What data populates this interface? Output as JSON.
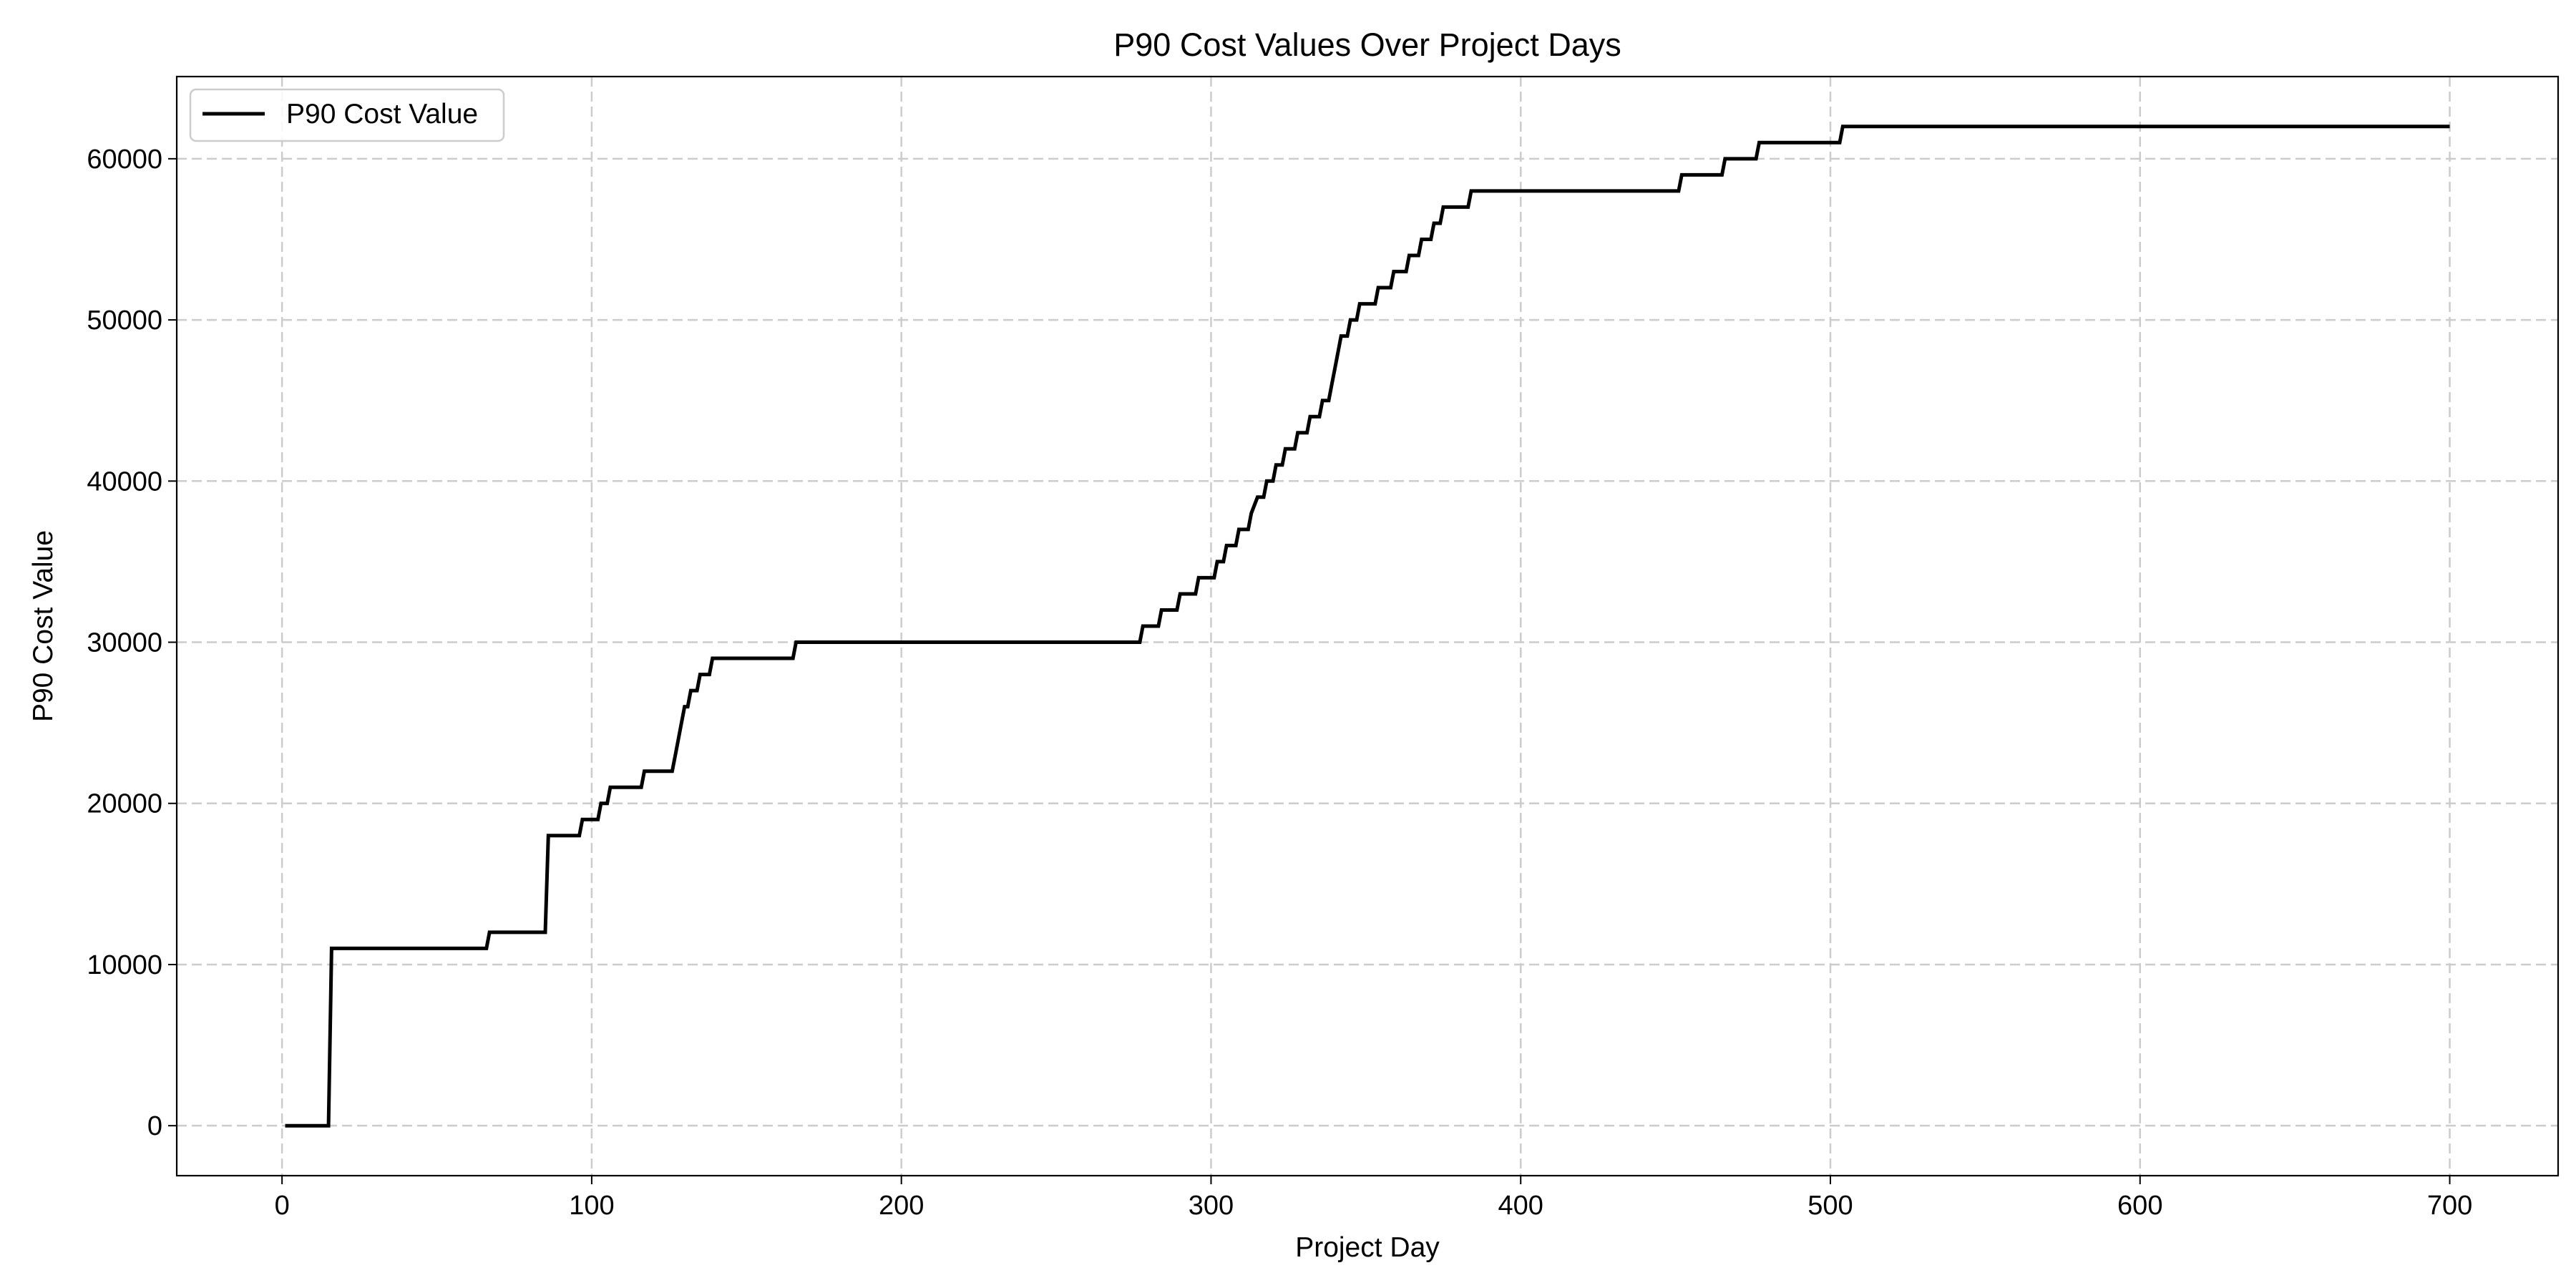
{
  "chart_data": {
    "type": "line",
    "title": "P90 Cost Values Over Project Days",
    "xlabel": "Project Day",
    "ylabel": "P90 Cost Value",
    "xlim": [
      -34,
      735
    ],
    "ylim": [
      -3100,
      65100
    ],
    "xticks": [
      0,
      100,
      200,
      300,
      400,
      500,
      600,
      700
    ],
    "yticks": [
      0,
      10000,
      20000,
      30000,
      40000,
      50000,
      60000
    ],
    "grid": true,
    "legend_position": "top-left",
    "series": [
      {
        "name": "P90 Cost Value",
        "color": "#000000",
        "step": true,
        "points": [
          [
            1,
            0
          ],
          [
            15,
            0
          ],
          [
            16,
            11000
          ],
          [
            66,
            11000
          ],
          [
            67,
            12000
          ],
          [
            85,
            12000
          ],
          [
            86,
            18000
          ],
          [
            96,
            18000
          ],
          [
            97,
            19000
          ],
          [
            102,
            19000
          ],
          [
            103,
            20000
          ],
          [
            105,
            20000
          ],
          [
            106,
            21000
          ],
          [
            116,
            21000
          ],
          [
            117,
            22000
          ],
          [
            126,
            22000
          ],
          [
            127,
            23000
          ],
          [
            128,
            24000
          ],
          [
            129,
            25000
          ],
          [
            130,
            26000
          ],
          [
            131,
            26000
          ],
          [
            132,
            27000
          ],
          [
            134,
            27000
          ],
          [
            135,
            28000
          ],
          [
            138,
            28000
          ],
          [
            139,
            29000
          ],
          [
            165,
            29000
          ],
          [
            166,
            30000
          ],
          [
            277,
            30000
          ],
          [
            278,
            31000
          ],
          [
            283,
            31000
          ],
          [
            284,
            32000
          ],
          [
            289,
            32000
          ],
          [
            290,
            33000
          ],
          [
            295,
            33000
          ],
          [
            296,
            34000
          ],
          [
            301,
            34000
          ],
          [
            302,
            35000
          ],
          [
            304,
            35000
          ],
          [
            305,
            36000
          ],
          [
            308,
            36000
          ],
          [
            309,
            37000
          ],
          [
            312,
            37000
          ],
          [
            313,
            38000
          ],
          [
            315,
            39000
          ],
          [
            317,
            39000
          ],
          [
            318,
            40000
          ],
          [
            320,
            40000
          ],
          [
            321,
            41000
          ],
          [
            323,
            41000
          ],
          [
            324,
            42000
          ],
          [
            327,
            42000
          ],
          [
            328,
            43000
          ],
          [
            331,
            43000
          ],
          [
            332,
            44000
          ],
          [
            335,
            44000
          ],
          [
            336,
            45000
          ],
          [
            338,
            45000
          ],
          [
            339,
            46000
          ],
          [
            340,
            47000
          ],
          [
            341,
            48000
          ],
          [
            342,
            49000
          ],
          [
            344,
            49000
          ],
          [
            345,
            50000
          ],
          [
            347,
            50000
          ],
          [
            348,
            51000
          ],
          [
            353,
            51000
          ],
          [
            354,
            52000
          ],
          [
            358,
            52000
          ],
          [
            359,
            53000
          ],
          [
            363,
            53000
          ],
          [
            364,
            54000
          ],
          [
            367,
            54000
          ],
          [
            368,
            55000
          ],
          [
            371,
            55000
          ],
          [
            372,
            56000
          ],
          [
            374,
            56000
          ],
          [
            375,
            57000
          ],
          [
            383,
            57000
          ],
          [
            384,
            58000
          ],
          [
            451,
            58000
          ],
          [
            452,
            59000
          ],
          [
            465,
            59000
          ],
          [
            466,
            60000
          ],
          [
            476,
            60000
          ],
          [
            477,
            61000
          ],
          [
            503,
            61000
          ],
          [
            504,
            62000
          ],
          [
            700,
            62000
          ]
        ]
      }
    ]
  }
}
